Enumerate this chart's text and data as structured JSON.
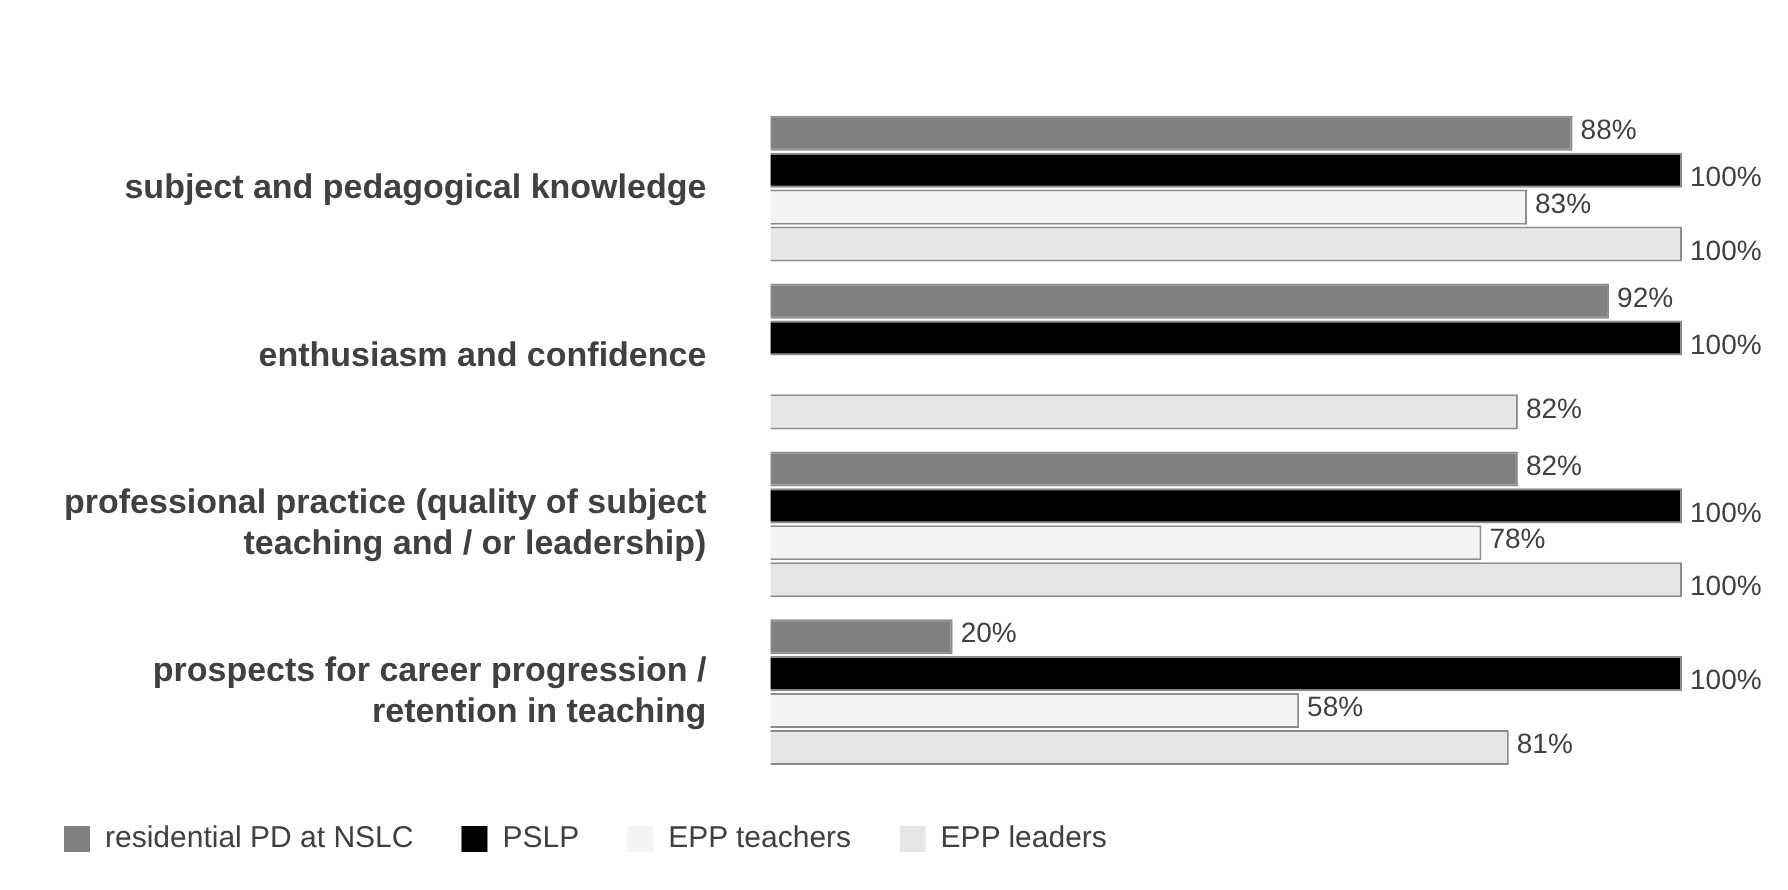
{
  "chart_data": {
    "type": "bar",
    "orientation": "horizontal",
    "categories": [
      "subject and pedagogical knowledge",
      "enthusiasm and confidence",
      "professional practice (quality of subject teaching and / or leadership)",
      "prospects for career progression / retention in teaching"
    ],
    "series": [
      {
        "name": "residential PD at NSLC",
        "color": "#808080",
        "values": [
          88,
          92,
          82,
          20
        ],
        "value_labels": [
          "88%",
          "92%",
          "82%",
          "20%"
        ]
      },
      {
        "name": "PSLP",
        "color": "#000000",
        "values": [
          100,
          100,
          100,
          100
        ],
        "value_labels": [
          "100%",
          "100%",
          "100%",
          "100%"
        ]
      },
      {
        "name": "EPP teachers",
        "color": "#f4f4f4",
        "values": [
          83,
          null,
          78,
          58
        ],
        "value_labels": [
          "83%",
          null,
          "78%",
          "58%"
        ]
      },
      {
        "name": "EPP leaders",
        "color": "#e6e6e6",
        "values": [
          100,
          82,
          100,
          81
        ],
        "value_labels": [
          "100%",
          "82%",
          "100%",
          "81%"
        ]
      }
    ],
    "xlim": [
      0,
      100
    ],
    "tick_labels": false,
    "legend": "bottom"
  }
}
